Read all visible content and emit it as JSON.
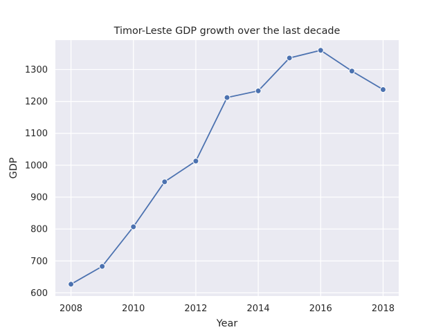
{
  "chart_data": {
    "type": "line",
    "title": "Timor-Leste GDP growth over the last decade",
    "xlabel": "Year",
    "ylabel": "GDP",
    "x": [
      2008,
      2009,
      2010,
      2011,
      2012,
      2013,
      2014,
      2015,
      2016,
      2017,
      2018
    ],
    "series": [
      {
        "values": [
          627,
          683,
          807,
          948,
          1013,
          1212,
          1233,
          1336,
          1360,
          1295,
          1237
        ]
      }
    ],
    "xlim": [
      2007.5,
      2018.5
    ],
    "ylim": [
      590,
      1392
    ],
    "xticks": [
      2008,
      2010,
      2012,
      2014,
      2016,
      2018
    ],
    "yticks": [
      600,
      700,
      800,
      900,
      1000,
      1100,
      1200,
      1300
    ],
    "grid": true,
    "color": "#4c72b0",
    "background": "#eaeaf2"
  }
}
